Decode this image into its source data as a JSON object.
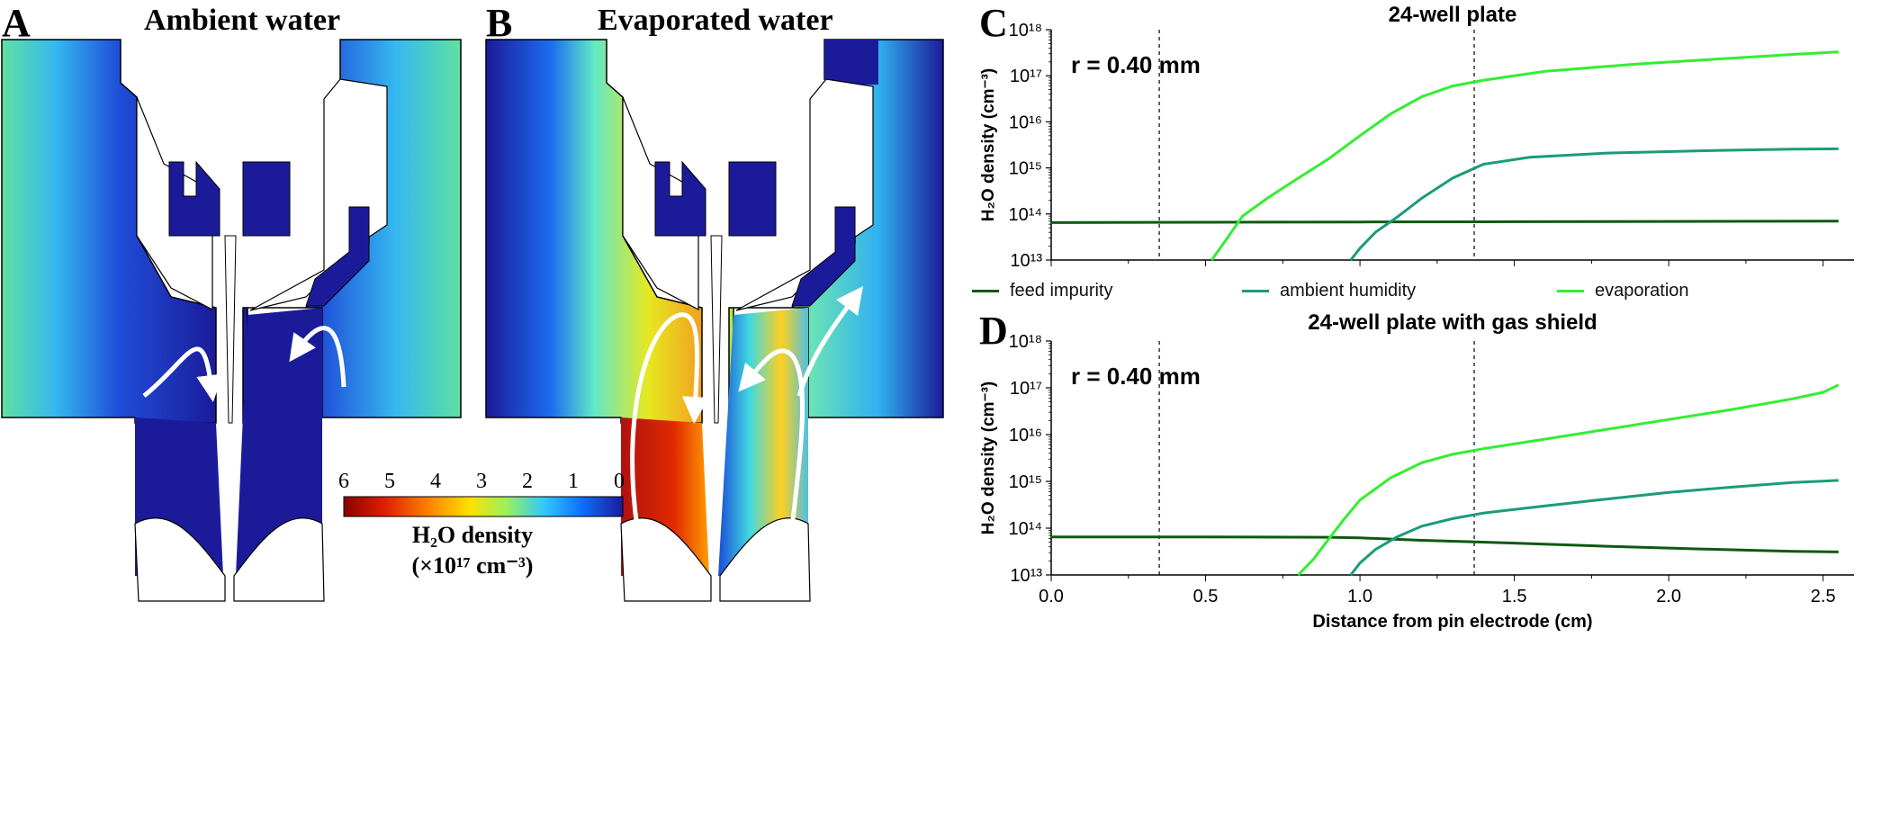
{
  "panels": {
    "A": {
      "letter": "A",
      "title": "Ambient water"
    },
    "B": {
      "letter": "B",
      "title": "Evaporated water"
    },
    "C": {
      "letter": "C"
    },
    "D": {
      "letter": "D"
    }
  },
  "colorbar": {
    "ticks": [
      "6",
      "5",
      "4",
      "3",
      "2",
      "1",
      "0"
    ],
    "title_line1": "H₂O density",
    "title_line2": "(×10¹⁷ cm⁻³)",
    "colors": [
      "#8b0000",
      "#e02000",
      "#ff8c00",
      "#ffe000",
      "#9cf05a",
      "#30c8ff",
      "#1070ff",
      "#1a1a9c"
    ]
  },
  "legend": {
    "items": [
      {
        "label": "feed impurity",
        "color": "#0d5a12"
      },
      {
        "label": "ambient humidity",
        "color": "#1a9c7a"
      },
      {
        "label": "evaporation",
        "color": "#33ee33"
      }
    ]
  },
  "chart_data": [
    {
      "type": "line",
      "title": "24-well plate",
      "annotation": "r = 0.40 mm",
      "xlabel": "",
      "ylabel": "H₂O density (cm⁻³)",
      "yscale": "log",
      "ylim": [
        10000000000000.0,
        1e+18
      ],
      "xlim": [
        0,
        2.6
      ],
      "y_tick_labels": [
        "10¹³",
        "10¹⁴",
        "10¹⁵",
        "10¹⁶",
        "10¹⁷",
        "10¹⁸"
      ],
      "vlines": [
        0.35,
        1.37
      ],
      "series": [
        {
          "name": "feed impurity",
          "color": "#0d5a12",
          "x": [
            0.0,
            0.5,
            1.0,
            1.5,
            2.0,
            2.55
          ],
          "y": [
            65000000000000.0,
            66000000000000.0,
            67000000000000.0,
            68000000000000.0,
            69000000000000.0,
            70000000000000.0
          ]
        },
        {
          "name": "ambient humidity",
          "color": "#1a9c7a",
          "x": [
            0.97,
            1.0,
            1.05,
            1.12,
            1.2,
            1.3,
            1.4,
            1.55,
            1.8,
            2.1,
            2.4,
            2.55
          ],
          "y": [
            10000000000000.0,
            18000000000000.0,
            40000000000000.0,
            85000000000000.0,
            220000000000000.0,
            600000000000000.0,
            1200000000000000.0,
            1700000000000000.0,
            2100000000000000.0,
            2350000000000000.0,
            2550000000000000.0,
            2600000000000000.0
          ]
        },
        {
          "name": "evaporation",
          "color": "#33ee33",
          "x": [
            0.52,
            0.57,
            0.62,
            0.7,
            0.8,
            0.9,
            1.0,
            1.1,
            1.2,
            1.3,
            1.4,
            1.6,
            1.9,
            2.2,
            2.4,
            2.55
          ],
          "y": [
            10000000000000.0,
            30000000000000.0,
            90000000000000.0,
            220000000000000.0,
            600000000000000.0,
            1600000000000000.0,
            5000000000000000.0,
            1.5e+16,
            3.5e+16,
            6e+16,
            8e+16,
            1.25e+17,
            1.8e+17,
            2.4e+17,
            2.9e+17,
            3.3e+17
          ]
        }
      ]
    },
    {
      "type": "line",
      "title": "24-well plate with gas shield",
      "annotation": "r = 0.40 mm",
      "xlabel": "Distance from pin electrode (cm)",
      "ylabel": "H₂O density (cm⁻³)",
      "yscale": "log",
      "ylim": [
        10000000000000.0,
        1e+18
      ],
      "xlim": [
        0,
        2.6
      ],
      "x_ticks": [
        "0.0",
        "0.5",
        "1.0",
        "1.5",
        "2.0",
        "2.5"
      ],
      "y_tick_labels": [
        "10¹³",
        "10¹⁴",
        "10¹⁵",
        "10¹⁶",
        "10¹⁷",
        "10¹⁸"
      ],
      "vlines": [
        0.35,
        1.37
      ],
      "series": [
        {
          "name": "feed impurity",
          "color": "#0d5a12",
          "x": [
            0.0,
            0.5,
            0.9,
            1.0,
            1.2,
            1.5,
            1.8,
            2.1,
            2.4,
            2.55
          ],
          "y": [
            65000000000000.0,
            65000000000000.0,
            64000000000000.0,
            62000000000000.0,
            55000000000000.0,
            48000000000000.0,
            41000000000000.0,
            36000000000000.0,
            32000000000000.0,
            31000000000000.0
          ]
        },
        {
          "name": "ambient humidity",
          "color": "#1a9c7a",
          "x": [
            0.97,
            1.0,
            1.05,
            1.12,
            1.2,
            1.3,
            1.4,
            1.6,
            1.8,
            2.0,
            2.2,
            2.4,
            2.55
          ],
          "y": [
            10000000000000.0,
            18000000000000.0,
            35000000000000.0,
            65000000000000.0,
            110000000000000.0,
            160000000000000.0,
            210000000000000.0,
            300000000000000.0,
            420000000000000.0,
            580000000000000.0,
            750000000000000.0,
            950000000000000.0,
            1050000000000000.0
          ]
        },
        {
          "name": "evaporation",
          "color": "#33ee33",
          "x": [
            0.8,
            0.85,
            0.9,
            0.95,
            1.0,
            1.1,
            1.2,
            1.3,
            1.4,
            1.6,
            1.8,
            2.0,
            2.2,
            2.4,
            2.5,
            2.55
          ],
          "y": [
            10000000000000.0,
            22000000000000.0,
            60000000000000.0,
            160000000000000.0,
            400000000000000.0,
            1200000000000000.0,
            2500000000000000.0,
            3800000000000000.0,
            5000000000000000.0,
            8000000000000000.0,
            1.3e+16,
            2.1e+16,
            3.4e+16,
            5.8e+16,
            8e+16,
            1.15e+17
          ]
        }
      ]
    }
  ]
}
